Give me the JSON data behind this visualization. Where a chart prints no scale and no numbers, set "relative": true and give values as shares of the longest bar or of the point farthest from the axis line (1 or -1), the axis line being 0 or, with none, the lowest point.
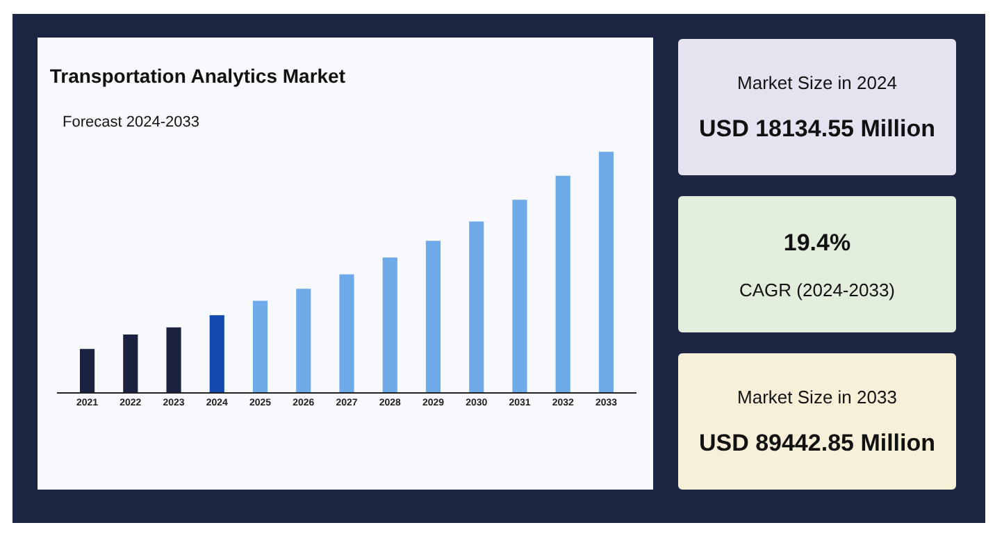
{
  "chart_data": [
    {
      "type": "bar",
      "title": "Transportation Analytics Market",
      "subtitle": "Forecast 2024-2033",
      "relative": true,
      "categories": [
        "2021",
        "2022",
        "2023",
        "2024",
        "2025",
        "2026",
        "2027",
        "2028",
        "2029",
        "2030",
        "2031",
        "2032",
        "2033"
      ],
      "values": [
        0.18,
        0.24,
        0.27,
        0.32,
        0.38,
        0.43,
        0.49,
        0.56,
        0.63,
        0.71,
        0.8,
        0.9,
        1
      ],
      "colors": [
        "#1b2240",
        "#1b2240",
        "#1b2240",
        "#1149b0",
        "#6ea9e8",
        "#6ea9e8",
        "#6ea9e8",
        "#6ea9e8",
        "#6ea9e8",
        "#6ea9e8",
        "#6ea9e8",
        "#6ea9e8",
        "#6ea9e8"
      ],
      "grid": false,
      "legend": false
    },
    {
      "type": "other",
      "annotations": [
        "Market Size in 2024",
        "USD 18134.55 Million",
        "19.4%",
        "CAGR (2024-2033)",
        "Market Size in 2033",
        "USD 89442.85 Million"
      ]
    }
  ]
}
